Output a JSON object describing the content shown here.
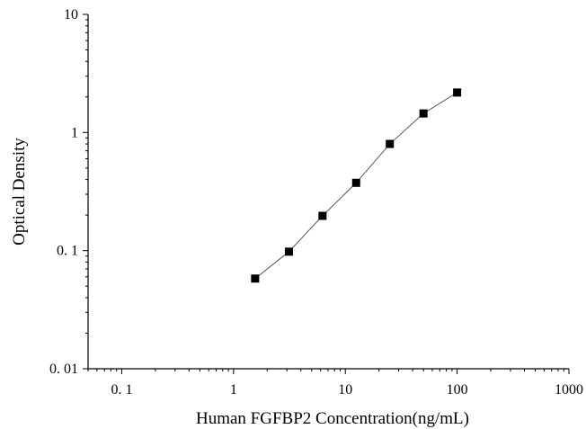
{
  "chart_data": {
    "type": "scatter",
    "title": "",
    "xlabel": "Human FGFBP2 Concentration(ng/mL)",
    "ylabel": "Optical Density",
    "x_scale": "log",
    "y_scale": "log",
    "xlim": [
      0.05,
      1000
    ],
    "ylim": [
      0.01,
      10
    ],
    "x_ticks": [
      0.1,
      1,
      10,
      100,
      1000
    ],
    "x_tick_labels": [
      "0. 1",
      "1",
      "10",
      "100",
      "1000"
    ],
    "y_ticks": [
      0.01,
      0.1,
      1,
      10
    ],
    "y_tick_labels": [
      "0. 01",
      "0. 1",
      "1",
      "10"
    ],
    "grid": false,
    "legend": "none",
    "marker": "square",
    "line": "connected",
    "series": [
      {
        "x": [
          1.56,
          3.13,
          6.25,
          12.5,
          25,
          50,
          100
        ],
        "y": [
          0.058,
          0.098,
          0.197,
          0.375,
          0.8,
          1.45,
          2.18
        ]
      }
    ],
    "colors": {
      "marker": "#000000",
      "line": "#555555",
      "axis": "#000000"
    }
  }
}
